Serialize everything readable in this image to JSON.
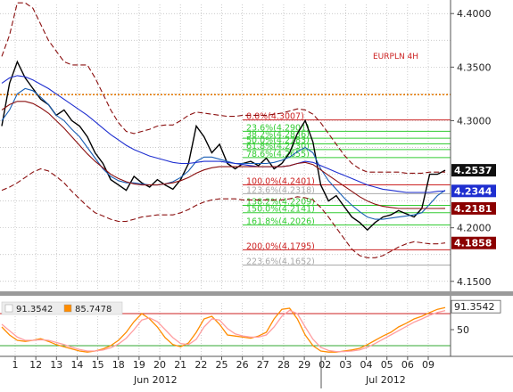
{
  "chart_data": {
    "type": "line",
    "instrument_label": "EURPLN 4H",
    "price_axis": {
      "ylim": [
        4.1415,
        4.4085
      ],
      "ticks": [
        {
          "value": 4.4,
          "label": "4.4000"
        },
        {
          "value": 4.35,
          "label": "4.3500"
        },
        {
          "value": 4.3,
          "label": "4.3000"
        },
        {
          "value": 4.2,
          "label": "4.2000"
        },
        {
          "value": 4.15,
          "label": "4.1500"
        }
      ]
    },
    "price_tags": [
      {
        "value": 4.2537,
        "label": "4.2537",
        "color": "#111111"
      },
      {
        "value": 4.2344,
        "label": "4.2344",
        "color": "#1f2fd0"
      },
      {
        "value": 4.2181,
        "label": "4.2181",
        "color": "#8b0000"
      },
      {
        "value": 4.1858,
        "label": "4.1858",
        "color": "#8b0000"
      }
    ],
    "fibonacci_levels": [
      {
        "value": 4.3007,
        "label": "0.0%(4.3007)",
        "color": "#cc2222"
      },
      {
        "value": 4.2901,
        "label": "23.6%(4.2901)",
        "color": "#33cc33"
      },
      {
        "value": 4.2836,
        "label": "38.2%(4.2836)",
        "color": "#33cc33"
      },
      {
        "value": 4.2783,
        "label": "50.0%(4.2783)",
        "color": "#33cc33"
      },
      {
        "value": 4.273,
        "label": "61.8%(4.2730)",
        "color": "#33cc33"
      },
      {
        "value": 4.2655,
        "label": "78.6%(4.2655)",
        "color": "#33cc33"
      },
      {
        "value": 4.2401,
        "label": "100.0%(4.2401)",
        "color": "#cc2222"
      },
      {
        "value": 4.2318,
        "label": "123.6%(4.2318)",
        "color": "#aaaaaa"
      },
      {
        "value": 4.2209,
        "label": "138.2%(4.2209)",
        "color": "#33cc33"
      },
      {
        "value": 4.2141,
        "label": "150.0%(4.2141)",
        "color": "#33cc33"
      },
      {
        "value": 4.2026,
        "label": "161.8%(4.2026)",
        "color": "#33cc33"
      },
      {
        "value": 4.1795,
        "label": "200.0%(4.1795)",
        "color": "#cc2222"
      },
      {
        "value": 4.1652,
        "label": "223.6%(4.1652)",
        "color": "#aaaaaa"
      }
    ],
    "resistance_level": {
      "value": 4.3243,
      "color": "#e87a00"
    },
    "x_labels": [
      "1",
      "12",
      "13",
      "14",
      "15",
      "18",
      "19",
      "20",
      "21",
      "22",
      "25",
      "26",
      "27",
      "28",
      "29",
      "02",
      "03",
      "04",
      "05",
      "06",
      "09"
    ],
    "month_labels": [
      "Jun 2012",
      "Jul 2012"
    ],
    "series": [
      {
        "name": "price",
        "color": "#000000",
        "values": [
          4.295,
          4.335,
          4.355,
          4.34,
          4.33,
          4.32,
          4.315,
          4.305,
          4.31,
          4.3,
          4.295,
          4.285,
          4.27,
          4.26,
          4.245,
          4.24,
          4.235,
          4.248,
          4.242,
          4.238,
          4.245,
          4.24,
          4.236,
          4.245,
          4.26,
          4.295,
          4.285,
          4.27,
          4.278,
          4.26,
          4.255,
          4.26,
          4.262,
          4.258,
          4.265,
          4.255,
          4.26,
          4.27,
          4.288,
          4.3,
          4.28,
          4.24,
          4.225,
          4.23,
          4.22,
          4.21,
          4.205,
          4.198,
          4.205,
          4.21,
          4.212,
          4.216,
          4.213,
          4.21,
          4.218,
          4.25,
          4.25,
          4.2537
        ]
      },
      {
        "name": "ma-fast",
        "color": "#1a5fb4",
        "values": [
          4.3,
          4.31,
          4.325,
          4.33,
          4.328,
          4.322,
          4.315,
          4.305,
          4.3,
          4.292,
          4.285,
          4.275,
          4.265,
          4.255,
          4.248,
          4.244,
          4.242,
          4.242,
          4.241,
          4.24,
          4.24,
          4.241,
          4.243,
          4.247,
          4.253,
          4.262,
          4.266,
          4.266,
          4.264,
          4.262,
          4.26,
          4.26,
          4.26,
          4.26,
          4.26,
          4.261,
          4.263,
          4.266,
          4.271,
          4.275,
          4.27,
          4.255,
          4.244,
          4.236,
          4.228,
          4.221,
          4.215,
          4.21,
          4.208,
          4.208,
          4.209,
          4.21,
          4.211,
          4.212,
          4.214,
          4.222,
          4.23,
          4.235
        ]
      },
      {
        "name": "ma-slow",
        "color": "#1f2fd0",
        "values": [
          4.335,
          4.34,
          4.342,
          4.341,
          4.338,
          4.334,
          4.33,
          4.325,
          4.32,
          4.315,
          4.31,
          4.305,
          4.299,
          4.293,
          4.287,
          4.282,
          4.277,
          4.273,
          4.27,
          4.267,
          4.265,
          4.263,
          4.261,
          4.26,
          4.26,
          4.261,
          4.262,
          4.262,
          4.262,
          4.261,
          4.26,
          4.259,
          4.258,
          4.257,
          4.257,
          4.257,
          4.257,
          4.258,
          4.26,
          4.262,
          4.261,
          4.258,
          4.255,
          4.252,
          4.249,
          4.246,
          4.243,
          4.24,
          4.238,
          4.236,
          4.235,
          4.234,
          4.233,
          4.233,
          4.233,
          4.233,
          4.234,
          4.2344
        ]
      },
      {
        "name": "ma-mid",
        "color": "#8b1010",
        "values": [
          4.31,
          4.315,
          4.318,
          4.318,
          4.316,
          4.312,
          4.307,
          4.3,
          4.293,
          4.285,
          4.277,
          4.269,
          4.262,
          4.256,
          4.25,
          4.246,
          4.243,
          4.241,
          4.24,
          4.24,
          4.24,
          4.241,
          4.242,
          4.244,
          4.247,
          4.251,
          4.254,
          4.256,
          4.257,
          4.257,
          4.257,
          4.257,
          4.257,
          4.257,
          4.257,
          4.257,
          4.257,
          4.258,
          4.26,
          4.261,
          4.259,
          4.254,
          4.249,
          4.244,
          4.239,
          4.234,
          4.229,
          4.225,
          4.222,
          4.22,
          4.219,
          4.218,
          4.218,
          4.218,
          4.218,
          4.218,
          4.218,
          4.2181
        ]
      },
      {
        "name": "band-upper",
        "color": "#8b1010",
        "values": [
          4.36,
          4.38,
          4.41,
          4.41,
          4.405,
          4.39,
          4.375,
          4.365,
          4.355,
          4.352,
          4.352,
          4.352,
          4.34,
          4.325,
          4.31,
          4.298,
          4.29,
          4.288,
          4.29,
          4.292,
          4.295,
          4.296,
          4.296,
          4.3,
          4.305,
          4.308,
          4.307,
          4.306,
          4.305,
          4.304,
          4.304,
          4.305,
          4.305,
          4.305,
          4.305,
          4.306,
          4.307,
          4.309,
          4.311,
          4.31,
          4.306,
          4.298,
          4.288,
          4.278,
          4.268,
          4.26,
          4.255,
          4.252,
          4.252,
          4.252,
          4.252,
          4.252,
          4.251,
          4.251,
          4.251,
          4.252,
          4.252,
          4.252
        ]
      },
      {
        "name": "band-lower",
        "color": "#8b1010",
        "values": [
          4.235,
          4.238,
          4.242,
          4.247,
          4.252,
          4.255,
          4.253,
          4.248,
          4.242,
          4.234,
          4.227,
          4.22,
          4.214,
          4.211,
          4.208,
          4.206,
          4.206,
          4.208,
          4.21,
          4.211,
          4.212,
          4.212,
          4.212,
          4.214,
          4.217,
          4.221,
          4.224,
          4.226,
          4.227,
          4.227,
          4.227,
          4.226,
          4.226,
          4.226,
          4.226,
          4.226,
          4.226,
          4.227,
          4.229,
          4.228,
          4.226,
          4.219,
          4.21,
          4.2,
          4.19,
          4.18,
          4.174,
          4.172,
          4.172,
          4.174,
          4.178,
          4.182,
          4.185,
          4.187,
          4.186,
          4.185,
          4.185,
          4.1858
        ]
      }
    ],
    "oscillator": {
      "ylim": [
        0,
        100
      ],
      "tick_label": "50",
      "tick_value": 50,
      "upper_level": 80,
      "lower_level": 20,
      "legend": [
        {
          "label": "91.3542",
          "color": "#ffffff"
        },
        {
          "label": "85.7478",
          "color": "#ff8c00"
        }
      ],
      "current_label": "91.3542",
      "series": [
        {
          "name": "k",
          "color": "#ff8c00",
          "values": [
            55,
            40,
            30,
            28,
            30,
            33,
            28,
            22,
            18,
            14,
            10,
            8,
            10,
            14,
            20,
            30,
            45,
            65,
            80,
            70,
            55,
            35,
            22,
            18,
            25,
            45,
            70,
            75,
            60,
            40,
            38,
            36,
            34,
            38,
            45,
            70,
            88,
            90,
            70,
            40,
            20,
            10,
            8,
            8,
            10,
            12,
            15,
            22,
            30,
            38,
            45,
            55,
            62,
            70,
            75,
            82,
            88,
            91.35
          ]
        },
        {
          "name": "d",
          "color": "#ff9ea0",
          "values": [
            60,
            48,
            36,
            30,
            30,
            31,
            30,
            26,
            22,
            17,
            13,
            10,
            10,
            12,
            16,
            23,
            34,
            50,
            68,
            72,
            65,
            50,
            35,
            24,
            22,
            32,
            55,
            70,
            68,
            52,
            42,
            38,
            36,
            36,
            40,
            55,
            75,
            86,
            80,
            55,
            32,
            17,
            11,
            9,
            9,
            10,
            12,
            17,
            24,
            32,
            40,
            48,
            56,
            64,
            70,
            77,
            82,
            85.75
          ]
        }
      ]
    },
    "grid": true
  }
}
